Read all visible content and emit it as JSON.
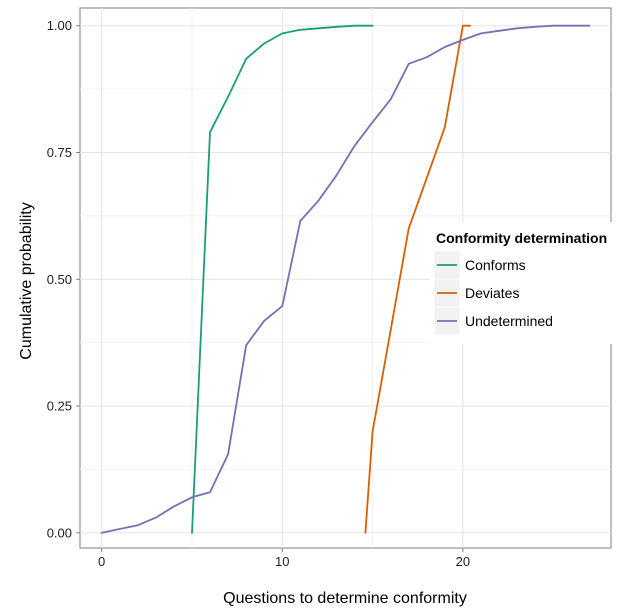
{
  "chart_data": {
    "type": "line",
    "title": "",
    "xlabel": "Questions to determine conformity",
    "ylabel": "Cumulative probability",
    "xlim": [
      -1.2,
      28.2
    ],
    "ylim": [
      -0.03,
      1.035
    ],
    "xticks": [
      0,
      10,
      20
    ],
    "xtick_labels": [
      "0",
      "10",
      "20"
    ],
    "yticks": [
      0,
      0.25,
      0.5,
      0.75,
      1.0
    ],
    "ytick_labels": [
      "0.00",
      "0.25",
      "0.50",
      "0.75",
      "1.00"
    ],
    "grid": true,
    "legend": {
      "title": "Conformity determination",
      "position": "right"
    },
    "series": [
      {
        "name": "Conforms",
        "color": "#1b9e77",
        "x": [
          5,
          6,
          7,
          8,
          9,
          10,
          11,
          12,
          13,
          14,
          15
        ],
        "y": [
          0.0,
          0.79,
          0.86,
          0.935,
          0.965,
          0.985,
          0.992,
          0.995,
          0.998,
          1.0,
          1.0
        ]
      },
      {
        "name": "Deviates",
        "color": "#d95f02",
        "x": [
          14.6,
          15,
          16,
          17,
          18,
          19,
          20,
          20.2,
          20.4
        ],
        "y": [
          0.0,
          0.2,
          0.4,
          0.6,
          0.7,
          0.8,
          1.0,
          1.0,
          1.0
        ]
      },
      {
        "name": "Undetermined",
        "color": "#7570b3",
        "x": [
          0,
          2,
          3,
          4,
          5,
          6,
          7,
          8,
          9,
          10,
          11,
          12,
          13,
          14,
          15,
          16,
          17,
          18,
          19,
          20,
          21,
          22,
          23,
          24,
          25,
          26,
          27
        ],
        "y": [
          0.0,
          0.015,
          0.03,
          0.052,
          0.07,
          0.08,
          0.155,
          0.37,
          0.418,
          0.447,
          0.615,
          0.655,
          0.705,
          0.763,
          0.81,
          0.855,
          0.925,
          0.938,
          0.958,
          0.972,
          0.985,
          0.99,
          0.995,
          0.998,
          1.0,
          1.0,
          1.0
        ]
      }
    ]
  }
}
